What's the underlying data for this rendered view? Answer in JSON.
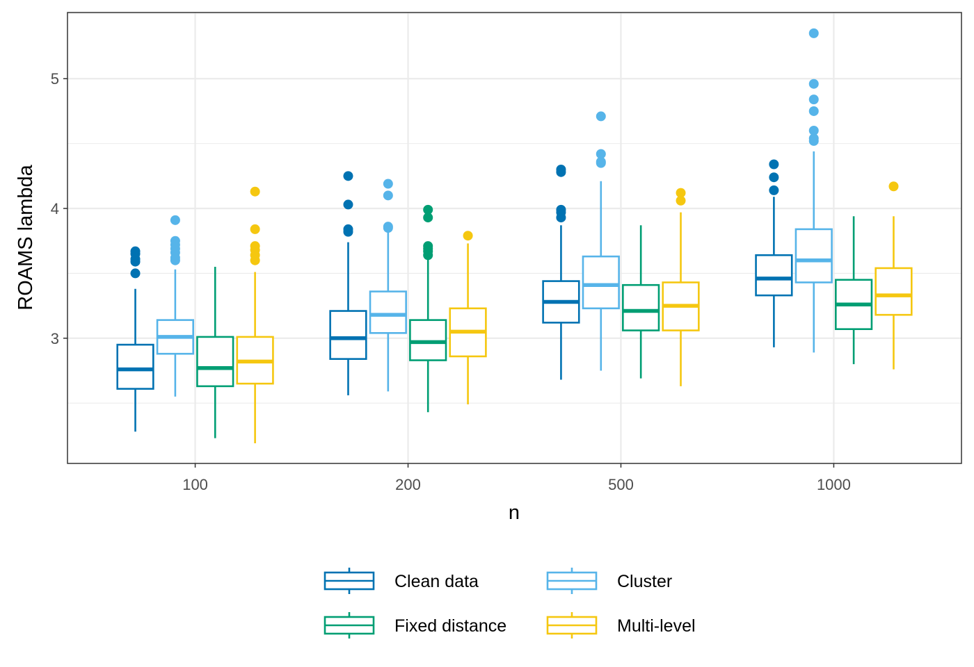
{
  "chart_data": {
    "type": "boxplot",
    "title": "",
    "xlabel": "n",
    "ylabel": "ROAMS lambda",
    "categories": [
      "100",
      "200",
      "500",
      "1000"
    ],
    "ylim": [
      2.035,
      5.51
    ],
    "yticks": [
      3,
      4,
      5
    ],
    "grid": true,
    "legend_position": "bottom",
    "series": [
      {
        "name": "Clean data",
        "color": "#0072B2",
        "boxes": [
          {
            "whisker_low": 2.28,
            "q1": 2.61,
            "median": 2.76,
            "q3": 2.95,
            "whisker_high": 3.38,
            "outliers": [
              3.5,
              3.59,
              3.61,
              3.65,
              3.67
            ]
          },
          {
            "whisker_low": 2.56,
            "q1": 2.84,
            "median": 3.0,
            "q3": 3.21,
            "whisker_high": 3.74,
            "outliers": [
              3.82,
              3.84,
              4.03,
              4.25
            ]
          },
          {
            "whisker_low": 2.68,
            "q1": 3.12,
            "median": 3.28,
            "q3": 3.44,
            "whisker_high": 3.87,
            "outliers": [
              3.93,
              3.97,
              3.99,
              4.28,
              4.3
            ]
          },
          {
            "whisker_low": 2.93,
            "q1": 3.33,
            "median": 3.46,
            "q3": 3.64,
            "whisker_high": 4.09,
            "outliers": [
              4.14,
              4.24,
              4.34
            ]
          }
        ]
      },
      {
        "name": "Cluster",
        "color": "#56B4E9",
        "boxes": [
          {
            "whisker_low": 2.55,
            "q1": 2.88,
            "median": 3.01,
            "q3": 3.14,
            "whisker_high": 3.53,
            "outliers": [
              3.6,
              3.62,
              3.66,
              3.69,
              3.72,
              3.75,
              3.91
            ]
          },
          {
            "whisker_low": 2.59,
            "q1": 3.04,
            "median": 3.18,
            "q3": 3.36,
            "whisker_high": 3.82,
            "outliers": [
              3.85,
              3.86,
              4.1,
              4.19
            ]
          },
          {
            "whisker_low": 2.75,
            "q1": 3.23,
            "median": 3.41,
            "q3": 3.63,
            "whisker_high": 4.21,
            "outliers": [
              4.35,
              4.36,
              4.42,
              4.71
            ]
          },
          {
            "whisker_low": 2.89,
            "q1": 3.43,
            "median": 3.6,
            "q3": 3.84,
            "whisker_high": 4.44,
            "outliers": [
              4.52,
              4.54,
              4.6,
              4.75,
              4.84,
              4.96,
              5.35
            ]
          }
        ]
      },
      {
        "name": "Fixed distance",
        "color": "#009E73",
        "boxes": [
          {
            "whisker_low": 2.23,
            "q1": 2.63,
            "median": 2.77,
            "q3": 3.01,
            "whisker_high": 3.55,
            "outliers": []
          },
          {
            "whisker_low": 2.43,
            "q1": 2.83,
            "median": 2.97,
            "q3": 3.14,
            "whisker_high": 3.62,
            "outliers": [
              3.64,
              3.67,
              3.69,
              3.71,
              3.93,
              3.99
            ]
          },
          {
            "whisker_low": 2.69,
            "q1": 3.06,
            "median": 3.21,
            "q3": 3.41,
            "whisker_high": 3.87,
            "outliers": []
          },
          {
            "whisker_low": 2.8,
            "q1": 3.07,
            "median": 3.26,
            "q3": 3.45,
            "whisker_high": 3.94,
            "outliers": []
          }
        ]
      },
      {
        "name": "Multi-level",
        "color": "#F5C710",
        "boxes": [
          {
            "whisker_low": 2.19,
            "q1": 2.65,
            "median": 2.82,
            "q3": 3.01,
            "whisker_high": 3.51,
            "outliers": [
              3.6,
              3.64,
              3.68,
              3.71,
              3.84,
              4.13
            ]
          },
          {
            "whisker_low": 2.49,
            "q1": 2.86,
            "median": 3.05,
            "q3": 3.23,
            "whisker_high": 3.73,
            "outliers": [
              3.79
            ]
          },
          {
            "whisker_low": 2.63,
            "q1": 3.06,
            "median": 3.25,
            "q3": 3.43,
            "whisker_high": 3.97,
            "outliers": [
              4.06,
              4.12
            ]
          },
          {
            "whisker_low": 2.76,
            "q1": 3.18,
            "median": 3.33,
            "q3": 3.54,
            "whisker_high": 3.94,
            "outliers": [
              4.17
            ]
          }
        ]
      }
    ]
  }
}
